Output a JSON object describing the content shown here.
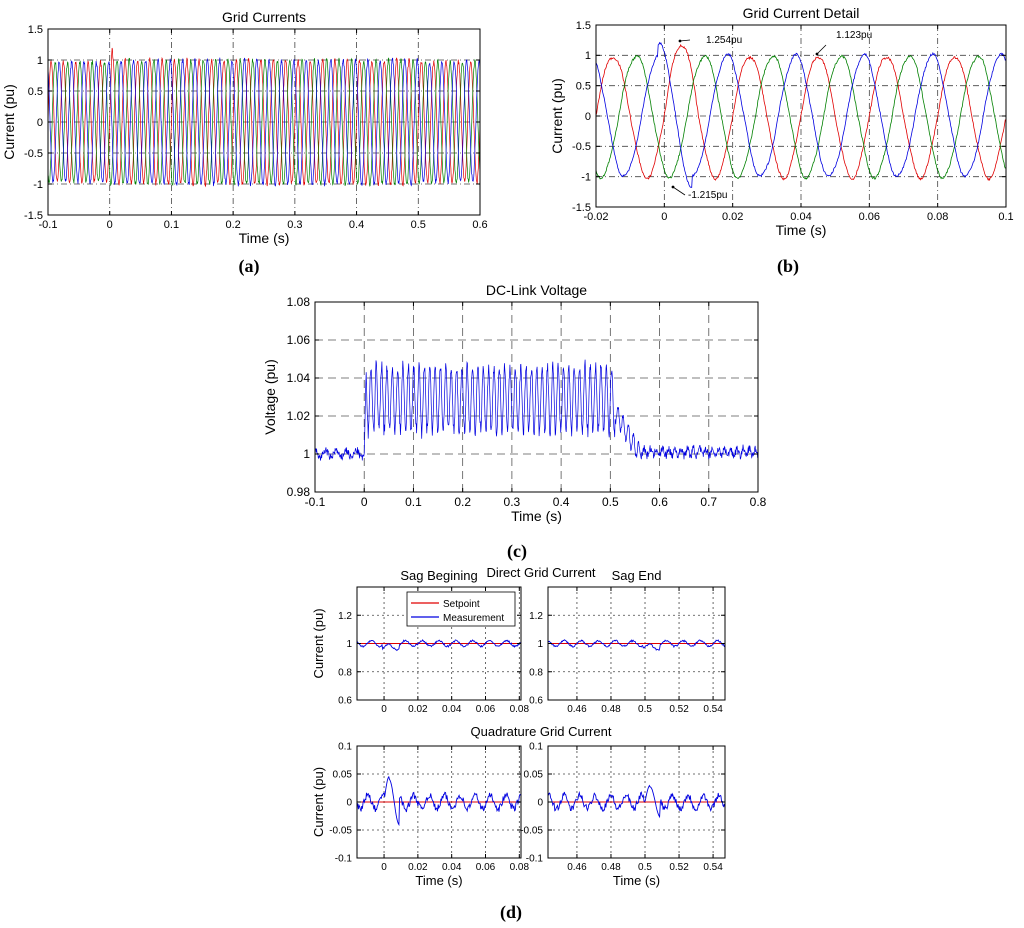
{
  "chart_data": [
    {
      "id": "a",
      "panel_label": "(a)",
      "type": "line",
      "title": "Grid Currents",
      "xlabel": "Time (s)",
      "ylabel": "Current (pu)",
      "xlim": [
        -0.1,
        0.6
      ],
      "ylim": [
        -1.5,
        1.5
      ],
      "xticks": [
        "-0.1",
        "0",
        "0.1",
        "0.2",
        "0.3",
        "0.4",
        "0.5",
        "0.6"
      ],
      "yticks": [
        "-1.5",
        "-1",
        "-0.5",
        "0",
        "0.5",
        "1",
        "1.5"
      ],
      "grid": "dash-dot",
      "series": [
        {
          "color": "#e00000",
          "signal": "three-phase",
          "frequency_hz": 50,
          "amplitude_pu": 1.0,
          "phase_deg": 0
        },
        {
          "color": "#008000",
          "signal": "three-phase",
          "frequency_hz": 50,
          "amplitude_pu": 1.0,
          "phase_deg": -120
        },
        {
          "color": "#0000e0",
          "signal": "three-phase",
          "frequency_hz": 50,
          "amplitude_pu": 1.0,
          "phase_deg": 120
        }
      ],
      "sag_start_s": 0.0,
      "sag_end_s": 0.5
    },
    {
      "id": "b",
      "panel_label": "(b)",
      "type": "line",
      "title": "Grid Current Detail",
      "xlabel": "Time (s)",
      "ylabel": "Current (pu)",
      "xlim": [
        -0.02,
        0.1
      ],
      "ylim": [
        -1.5,
        1.5
      ],
      "xticks": [
        "-0.02",
        "0",
        "0.02",
        "0.04",
        "0.06",
        "0.08",
        "0.1"
      ],
      "yticks": [
        "-1.5",
        "-1",
        "-0.5",
        "0",
        "0.5",
        "1",
        "1.5"
      ],
      "grid": "dash-dot",
      "series": [
        {
          "color": "#e00000",
          "signal": "three-phase",
          "frequency_hz": 50,
          "amplitude_pu": 1.0,
          "phase_deg": 0
        },
        {
          "color": "#008000",
          "signal": "three-phase",
          "frequency_hz": 50,
          "amplitude_pu": 1.0,
          "phase_deg": -120
        },
        {
          "color": "#0000e0",
          "signal": "three-phase",
          "frequency_hz": 50,
          "amplitude_pu": 1.0,
          "phase_deg": 120
        }
      ],
      "annotations": [
        {
          "text": "1.254pu",
          "x": 0.006,
          "y": 1.254
        },
        {
          "text": "1.123pu",
          "x": 0.046,
          "y": 1.123
        },
        {
          "text": "-1.215pu",
          "x": 0.002,
          "y": -1.215
        }
      ]
    },
    {
      "id": "c",
      "panel_label": "(c)",
      "type": "line",
      "title": "DC-Link Voltage",
      "xlabel": "Time (s)",
      "ylabel": "Voltage (pu)",
      "xlim": [
        -0.1,
        0.8
      ],
      "ylim": [
        0.98,
        1.08
      ],
      "xticks": [
        "-0.1",
        "0",
        "0.1",
        "0.2",
        "0.3",
        "0.4",
        "0.5",
        "0.6",
        "0.7",
        "0.8"
      ],
      "yticks": [
        "0.98",
        "1",
        "1.02",
        "1.04",
        "1.06",
        "1.08"
      ],
      "grid": "dashed",
      "series": [
        {
          "color": "#0000e0",
          "signal": "dc-link",
          "baseline_pu": 1.0,
          "oscillation_min_pu": 1.01,
          "oscillation_max_pu": 1.048,
          "oscillation_start_s": 0.0,
          "oscillation_end_s": 0.51,
          "settle_end_s": 0.56
        }
      ]
    },
    {
      "id": "d",
      "panel_label": "(d)",
      "type": "line",
      "group_titles": [
        "Direct Grid Current",
        "Quadrature Grid Current"
      ],
      "legend": {
        "entries": [
          {
            "label": "Setpoint",
            "color": "#e00000"
          },
          {
            "label": "Measurement",
            "color": "#0000e0"
          }
        ],
        "placement": "top-left of first subplot"
      },
      "subplots": [
        {
          "id": "d1",
          "title": "Sag Begining",
          "ylabel": "Current (pu)",
          "xlabel": "",
          "xlim": [
            -0.016,
            0.081
          ],
          "ylim": [
            0.6,
            1.4
          ],
          "xticks": [
            "0",
            "0.02",
            "0.04",
            "0.06",
            "0.08"
          ],
          "yticks": [
            "0.6",
            "0.8",
            "1",
            "1.2"
          ],
          "setpoint": 1.0,
          "measurement_range": [
            0.96,
            1.04
          ],
          "grid": "dotted"
        },
        {
          "id": "d2",
          "title": "Sag End",
          "ylabel": "",
          "xlabel": "",
          "xlim": [
            0.443,
            0.547
          ],
          "ylim": [
            0.6,
            1.4
          ],
          "xticks": [
            "0.46",
            "0.48",
            "0.5",
            "0.52",
            "0.54"
          ],
          "yticks": [
            "0.6",
            "0.8",
            "1",
            "1.2"
          ],
          "setpoint": 1.0,
          "measurement_range": [
            0.96,
            1.04
          ],
          "grid": "dotted"
        },
        {
          "id": "d3",
          "title": "",
          "ylabel": "Current (pu)",
          "xlabel": "Time (s)",
          "xlim": [
            -0.016,
            0.081
          ],
          "ylim": [
            -0.1,
            0.1
          ],
          "xticks": [
            "0",
            "0.02",
            "0.04",
            "0.06",
            "0.08"
          ],
          "yticks": [
            "-0.1",
            "-0.05",
            "0",
            "0.05",
            "0.1"
          ],
          "setpoint": 0.0,
          "measurement_peak": 0.045,
          "grid": "dotted"
        },
        {
          "id": "d4",
          "title": "",
          "ylabel": "",
          "xlabel": "Time (s)",
          "xlim": [
            0.443,
            0.547
          ],
          "ylim": [
            -0.1,
            0.1
          ],
          "xticks": [
            "0.46",
            "0.48",
            "0.5",
            "0.52",
            "0.54"
          ],
          "yticks": [
            "-0.1",
            "-0.05",
            "0",
            "0.05",
            "0.1"
          ],
          "setpoint": 0.0,
          "measurement_peak": 0.03,
          "grid": "dotted"
        }
      ]
    }
  ]
}
